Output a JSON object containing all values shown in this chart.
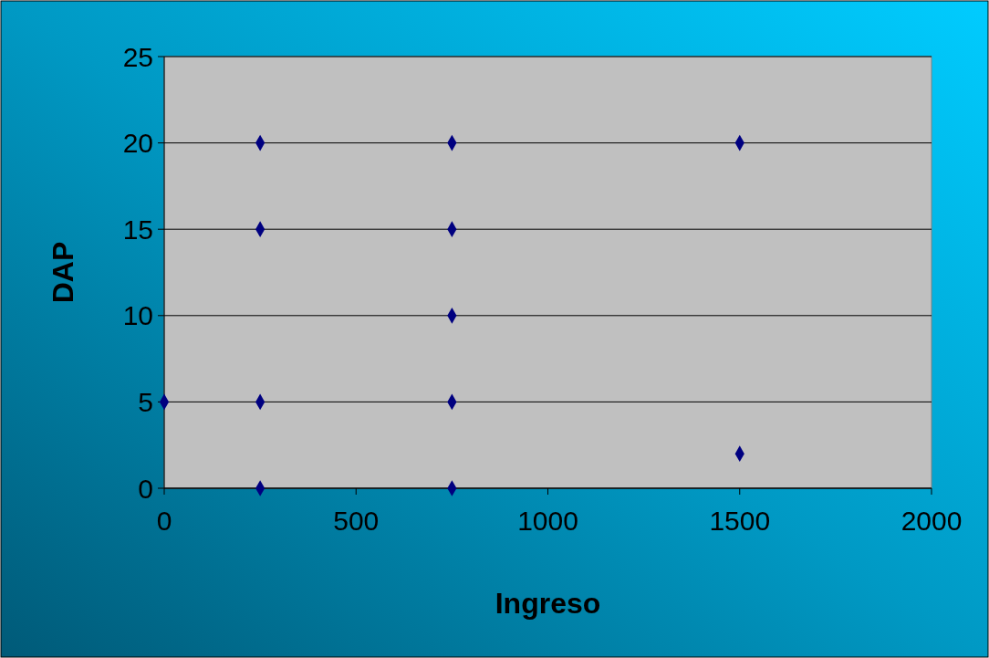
{
  "chart_data": {
    "type": "scatter",
    "xlabel": "Ingreso",
    "ylabel": "DAP",
    "x": [
      0,
      250,
      250,
      250,
      250,
      750,
      750,
      750,
      750,
      750,
      1500,
      1500
    ],
    "values": [
      5,
      20,
      15,
      5,
      0,
      20,
      15,
      10,
      5,
      0,
      20,
      2
    ],
    "color": "#000080",
    "marker": "diamond",
    "grid": "y",
    "xlim": [
      0,
      2000
    ],
    "xticks": [
      0,
      500,
      1000,
      1500,
      2000
    ],
    "ylim": [
      0,
      25
    ],
    "yticks": [
      0,
      5,
      10,
      15,
      20,
      25
    ]
  }
}
